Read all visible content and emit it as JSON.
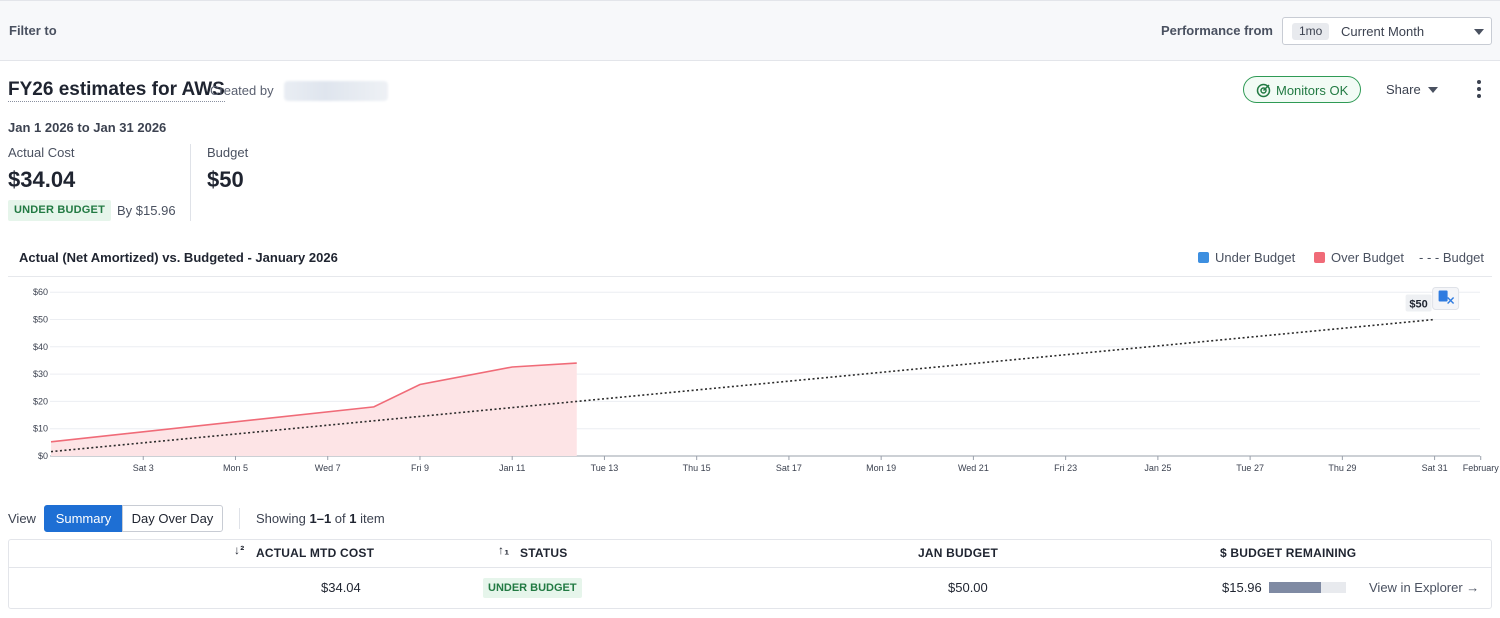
{
  "filter_bar": {
    "filter_label": "Filter to",
    "performance_label": "Performance from",
    "period_badge": "1mo",
    "period_value": "Current Month"
  },
  "header": {
    "title": "FY26 estimates for AWS",
    "created_by_label": "Created by",
    "monitors_label": "Monitors OK",
    "share_label": "Share"
  },
  "summary": {
    "date_range": "Jan 1 2026 to Jan 31 2026",
    "actual_cost_label": "Actual Cost",
    "actual_cost_value": "$34.04",
    "status_badge": "UNDER BUDGET",
    "by_text": "By $15.96",
    "budget_label": "Budget",
    "budget_value": "$50"
  },
  "chart_header": {
    "title": "Actual (Net Amortized) vs. Budgeted - January 2026",
    "legend_under": "Under Budget",
    "legend_over": "Over Budget",
    "legend_budget": "- - - Budget"
  },
  "colors": {
    "under_budget": "#3d8fe0",
    "over_budget": "#f06b78",
    "over_fill": "#fde4e6",
    "budget_line": "#2b2b2b",
    "accent": "#1e6fd4",
    "ok_green": "#227a43"
  },
  "chart_data": {
    "type": "area",
    "title": "Actual (Net Amortized) vs. Budgeted - January 2026",
    "ylim": [
      0,
      60
    ],
    "yticks": [
      "$0",
      "$10",
      "$20",
      "$30",
      "$40",
      "$50",
      "$60"
    ],
    "xticks": [
      {
        "day": 3,
        "label": "Sat 3"
      },
      {
        "day": 5,
        "label": "Mon 5"
      },
      {
        "day": 7,
        "label": "Wed 7"
      },
      {
        "day": 9,
        "label": "Fri 9"
      },
      {
        "day": 11,
        "label": "Jan 11"
      },
      {
        "day": 13,
        "label": "Tue 13"
      },
      {
        "day": 15,
        "label": "Thu 15"
      },
      {
        "day": 17,
        "label": "Sat 17"
      },
      {
        "day": 19,
        "label": "Mon 19"
      },
      {
        "day": 21,
        "label": "Wed 21"
      },
      {
        "day": 23,
        "label": "Fri 23"
      },
      {
        "day": 25,
        "label": "Jan 25"
      },
      {
        "day": 27,
        "label": "Tue 27"
      },
      {
        "day": 29,
        "label": "Thu 29"
      },
      {
        "day": 31,
        "label": "Sat 31"
      },
      {
        "day": 32,
        "label": "February"
      }
    ],
    "series": [
      {
        "name": "Over Budget",
        "x": [
          1,
          8,
          9,
          11,
          12.4
        ],
        "y": [
          5.2,
          18.0,
          26.2,
          32.6,
          34.04
        ]
      },
      {
        "name": "Budget",
        "x": [
          1,
          31
        ],
        "y": [
          1.6,
          50
        ]
      }
    ],
    "annotation": "$50",
    "grid": true
  },
  "view": {
    "label": "View",
    "tab_summary": "Summary",
    "tab_day_over_day": "Day Over Day",
    "showing_prefix": "Showing ",
    "showing_range": "1–1",
    "showing_mid": " of ",
    "showing_count": "1",
    "showing_suffix": " item"
  },
  "table": {
    "columns": {
      "actual_sort": "↓²",
      "actual": "ACTUAL MTD COST",
      "status_sort": "↑₁",
      "status": "STATUS",
      "budget": "JAN BUDGET",
      "remaining": "$ BUDGET REMAINING"
    },
    "row": {
      "actual": "$34.04",
      "status": "UNDER BUDGET",
      "budget": "$50.00",
      "remaining": "$15.96",
      "remaining_fraction": 0.68,
      "link": "View in Explorer →"
    }
  }
}
